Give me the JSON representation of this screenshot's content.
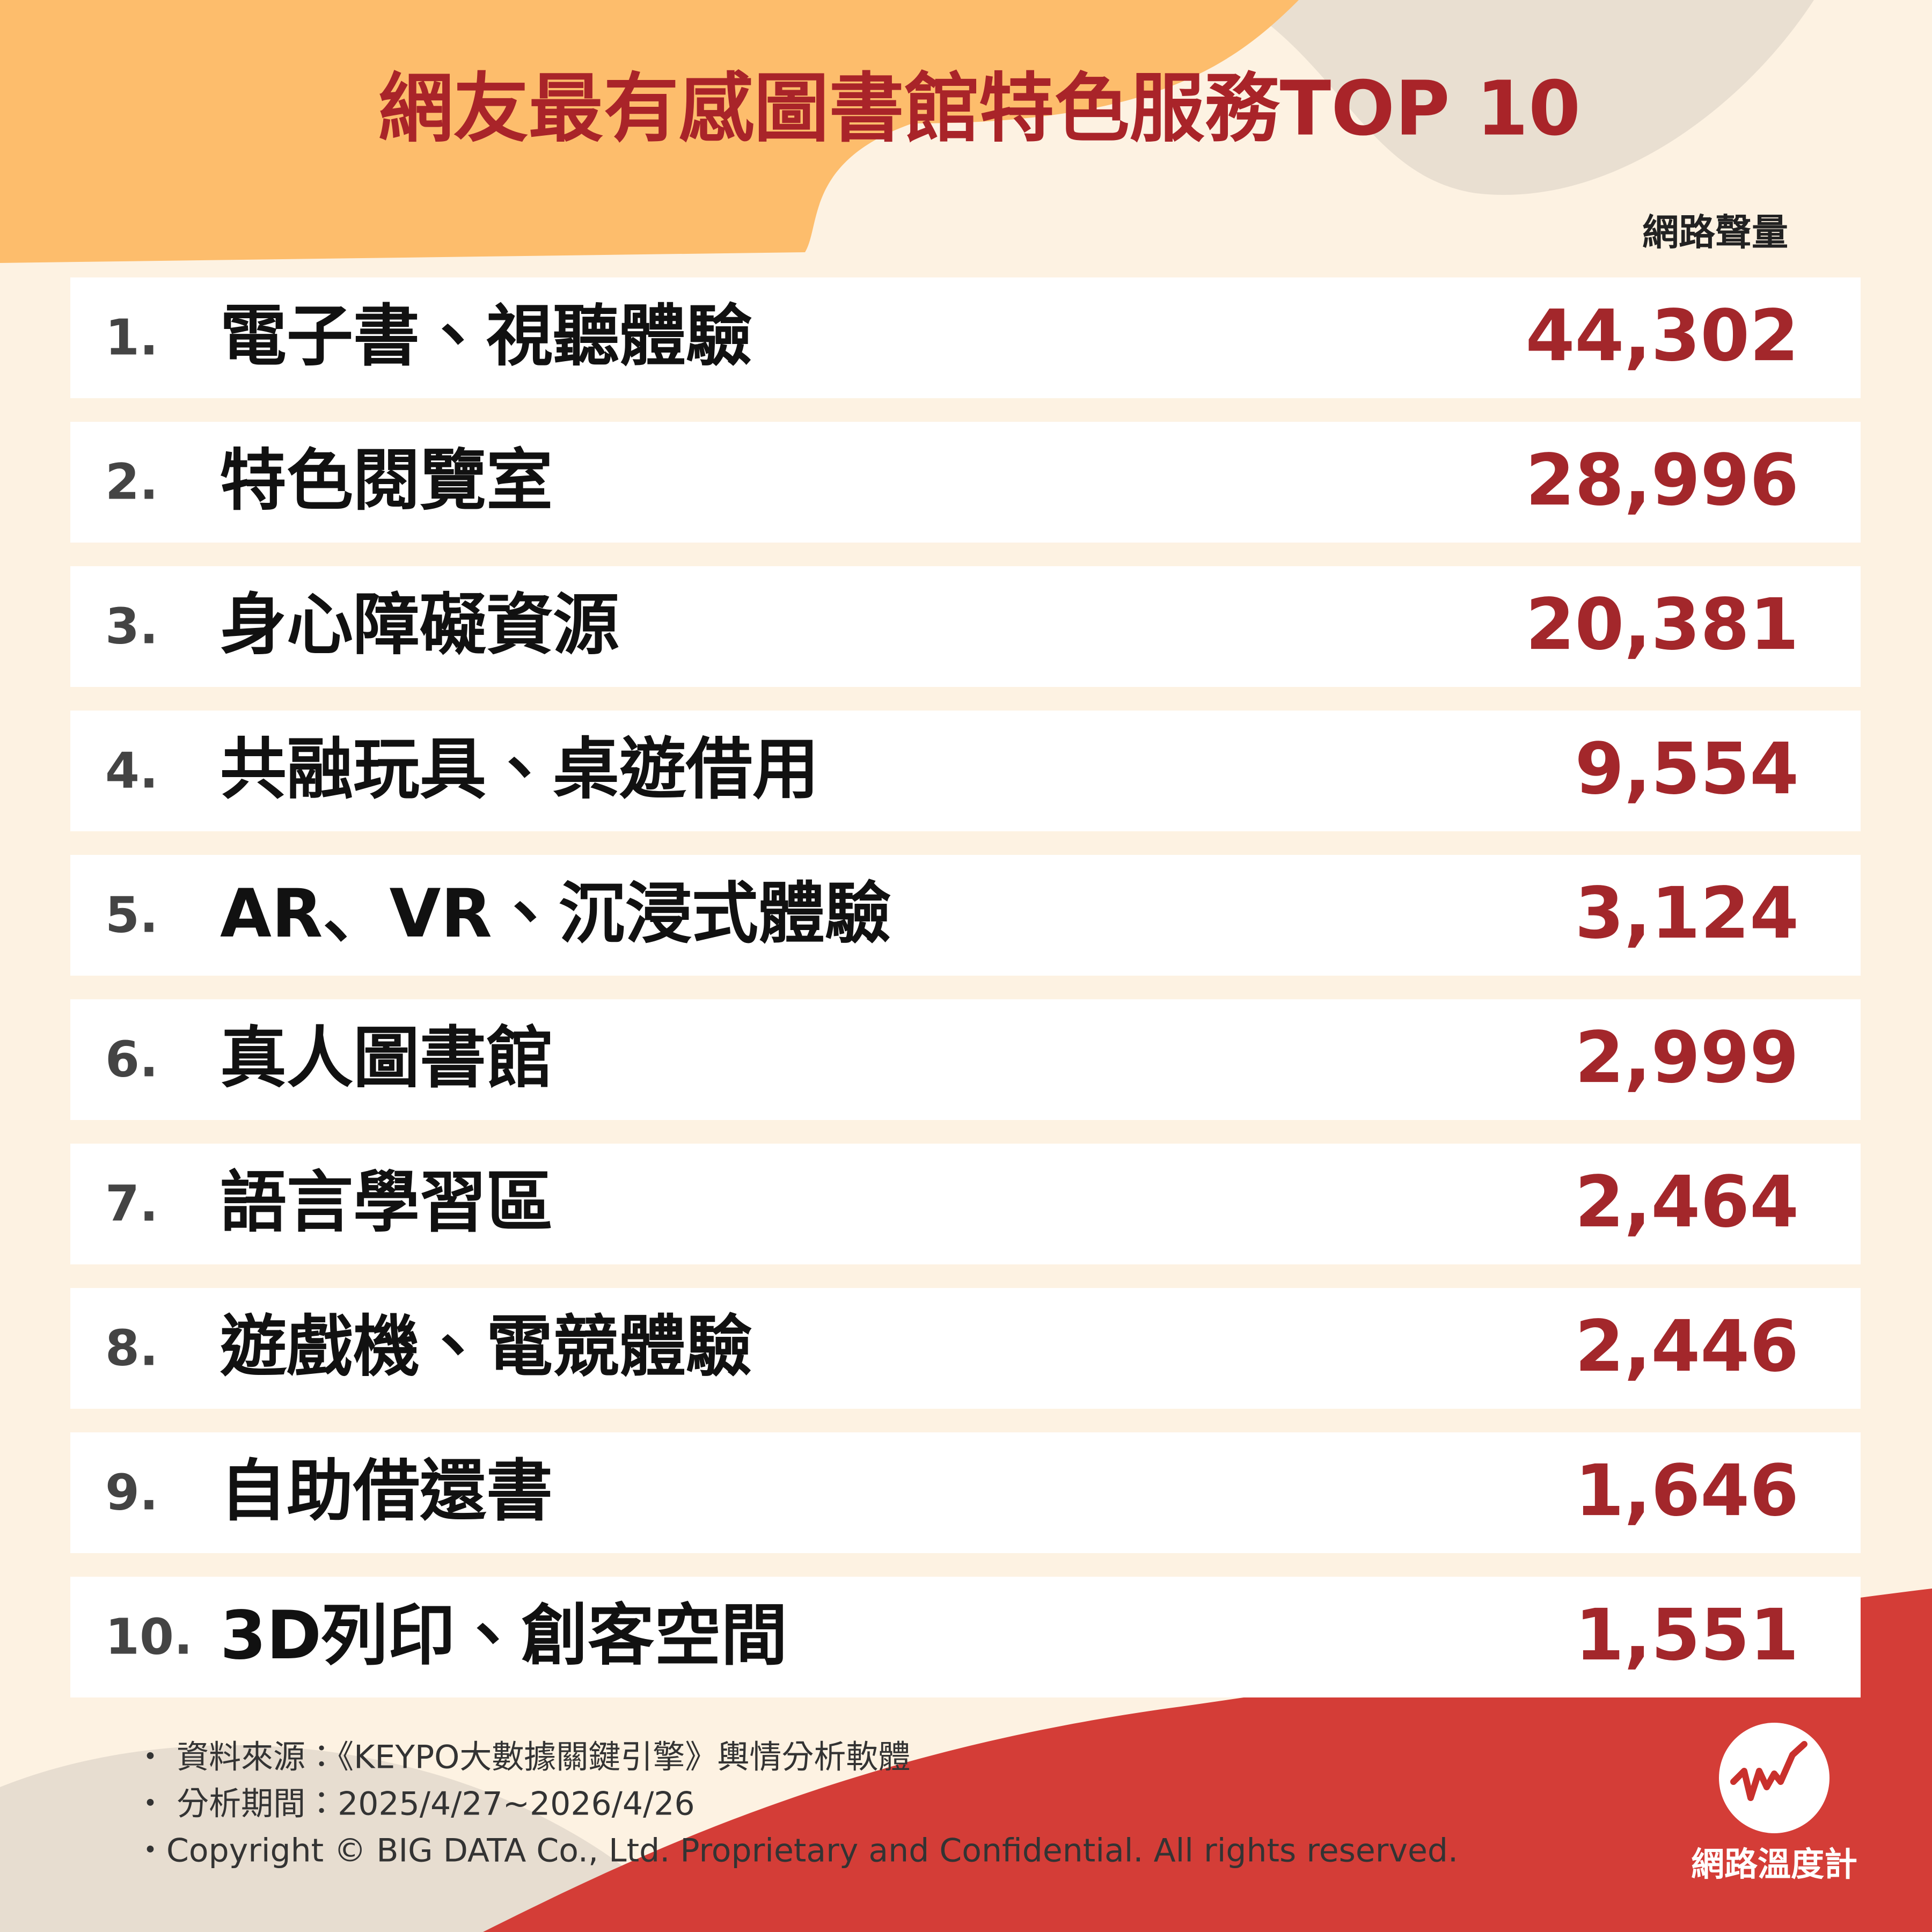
{
  "header": {
    "title": "網友最有感圖書館特色服務TOP 10"
  },
  "table": {
    "column_header": "網路聲量",
    "rows": [
      [
        "1.",
        "電子書、視聽體驗",
        "44,302"
      ],
      [
        "2.",
        "特色閱覽室",
        "28,996"
      ],
      [
        "3.",
        "身心障礙資源",
        "20,381"
      ],
      [
        "4.",
        "共融玩具、桌遊借用",
        "9,554"
      ],
      [
        "5.",
        "AR、VR、沉浸式體驗",
        "3,124"
      ],
      [
        "6.",
        "真人圖書館",
        "2,999"
      ],
      [
        "7.",
        "語言學習區",
        "2,464"
      ],
      [
        "8.",
        "遊戲機、電競體驗",
        "2,446"
      ],
      [
        "9.",
        "自助借還書",
        "1,646"
      ],
      [
        "10.",
        "3D列印、創客空間",
        "1,551"
      ]
    ]
  },
  "footer": {
    "notes": [
      "・ 資料來源：《KEYPO大數據關鍵引擎》輿情分析軟體",
      "・ 分析期間：2025/4/27~2026/4/26",
      "・Copyright © BIG DATA Co., Ltd. Proprietary and Confidential. All rights reserved."
    ],
    "logo": "網路溫度計"
  }
}
